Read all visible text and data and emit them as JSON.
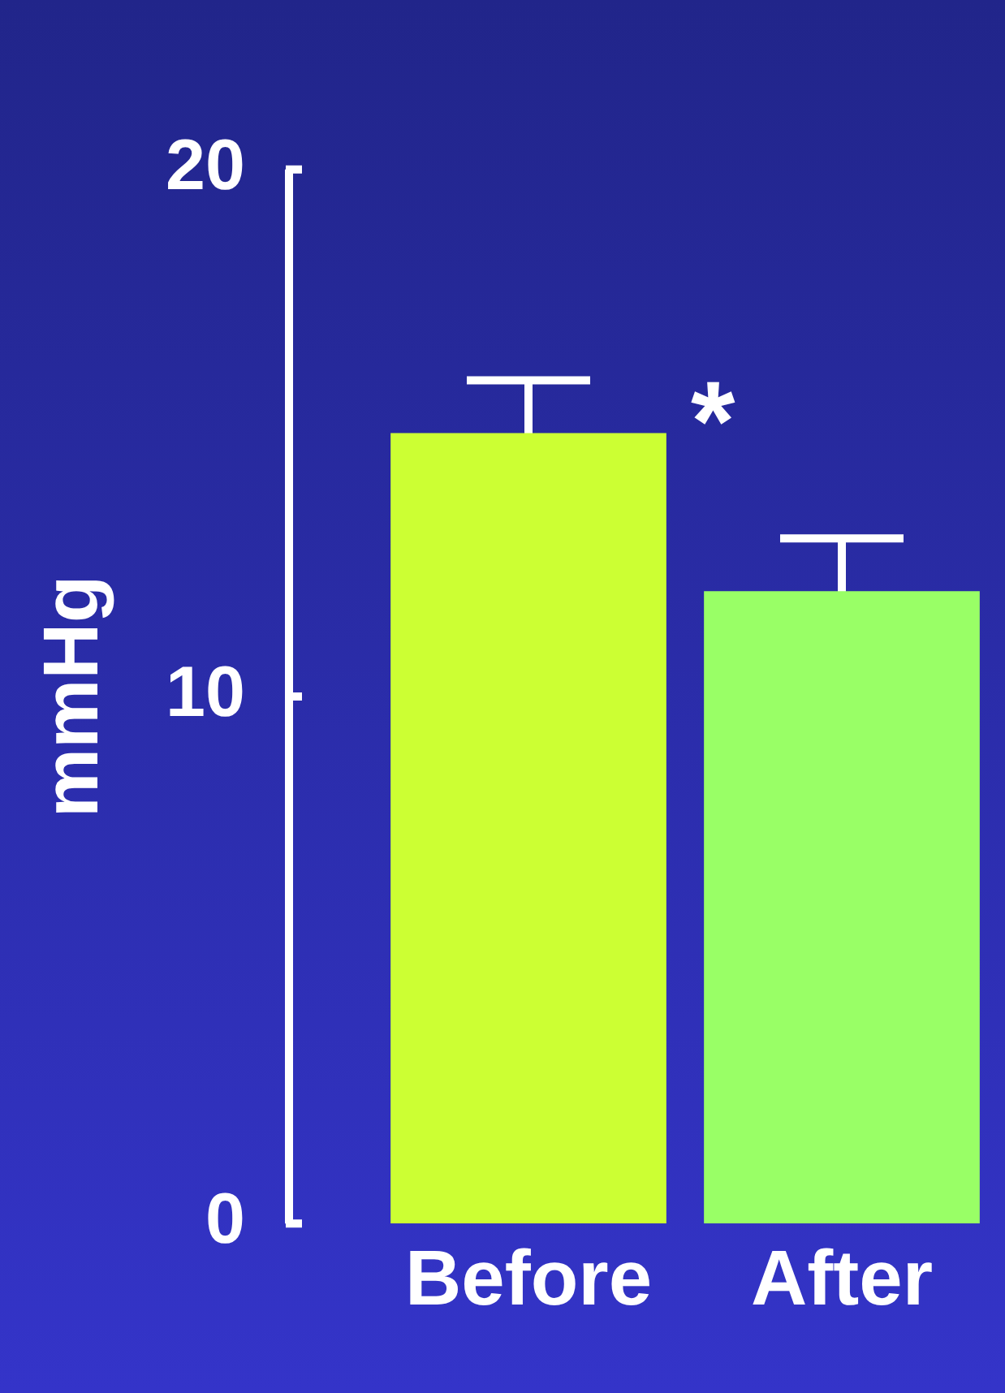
{
  "chart_data": {
    "type": "bar",
    "ylabel": "mmHg",
    "categories": [
      "Before",
      "After"
    ],
    "values": [
      15,
      12
    ],
    "colors": [
      "#ccff33",
      "#99ff66"
    ],
    "errors": [
      1,
      1
    ],
    "ylim": [
      0,
      20
    ],
    "yticks": [
      0,
      10,
      20
    ],
    "grid": false,
    "legend": false,
    "annotations": [
      {
        "text": "*",
        "x": "Before",
        "y": 16
      }
    ]
  }
}
